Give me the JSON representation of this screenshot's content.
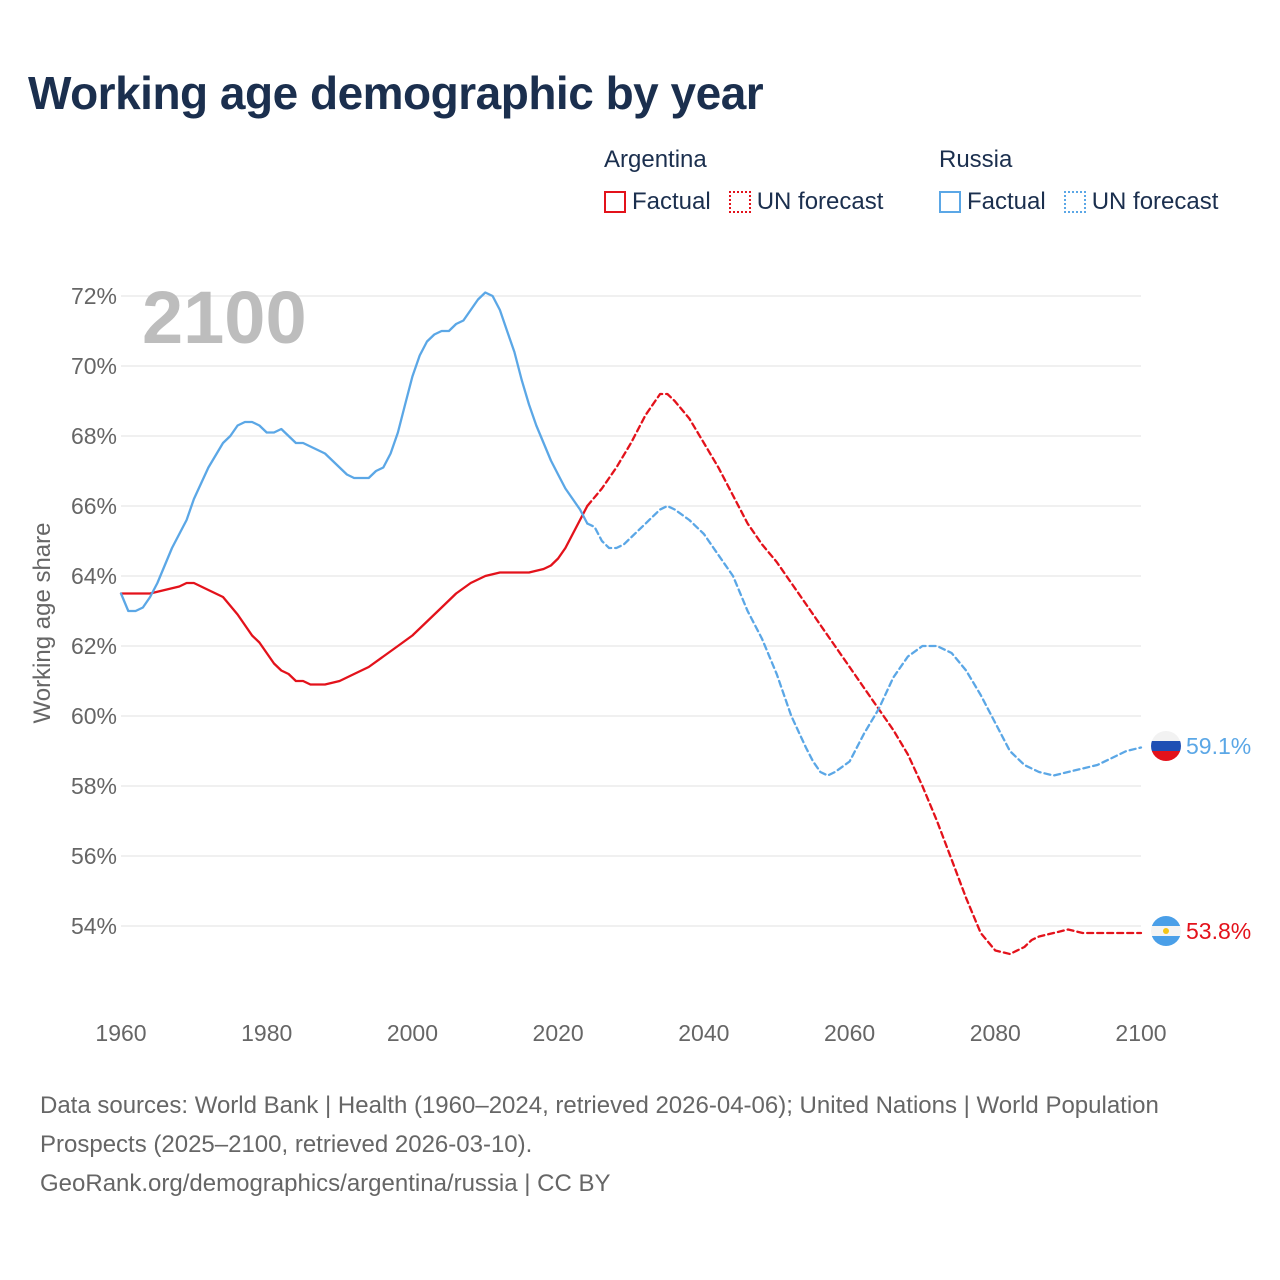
{
  "title": "Working age demographic by year",
  "year_watermark": "2100",
  "legend": {
    "groups": [
      {
        "name": "Argentina",
        "color": "#e3121b",
        "factual_label": "Factual",
        "forecast_label": "UN forecast"
      },
      {
        "name": "Russia",
        "color": "#5ba7e6",
        "factual_label": "Factual",
        "forecast_label": "UN forecast"
      }
    ]
  },
  "end_labels": {
    "argentina": "53.8%",
    "russia": "59.1%"
  },
  "footer": {
    "sources": "Data sources: World Bank | Health (1960–2024, retrieved 2026-04-06); United Nations | World Population Prospects (2025–2100, retrieved 2026-03-10).",
    "credit": "GeoRank.org/demographics/argentina/russia | CC BY"
  },
  "chart_data": {
    "type": "line",
    "title": "Working age demographic by year",
    "xlabel": "",
    "ylabel": "Working age share",
    "xlim": [
      1960,
      2100
    ],
    "ylim": [
      52,
      73
    ],
    "x_ticks": [
      1960,
      1980,
      2000,
      2020,
      2040,
      2060,
      2080,
      2100
    ],
    "x_tick_labels": [
      "1960",
      "1980",
      "2000",
      "2020",
      "2040",
      "2060",
      "2080",
      "2100"
    ],
    "y_ticks": [
      54,
      56,
      58,
      60,
      62,
      64,
      66,
      68,
      70,
      72
    ],
    "y_tick_labels": [
      "54%",
      "56%",
      "58%",
      "60%",
      "62%",
      "64%",
      "66%",
      "68%",
      "70%",
      "72%"
    ],
    "grid": true,
    "legend_position": "top-right",
    "series": [
      {
        "name": "Argentina Factual",
        "country": "Argentina",
        "style": "solid",
        "color": "#e3121b",
        "x": [
          1960,
          1962,
          1964,
          1966,
          1968,
          1969,
          1970,
          1972,
          1974,
          1976,
          1978,
          1979,
          1980,
          1981,
          1982,
          1983,
          1984,
          1985,
          1986,
          1988,
          1990,
          1992,
          1994,
          1996,
          1998,
          2000,
          2002,
          2004,
          2006,
          2008,
          2010,
          2012,
          2014,
          2016,
          2018,
          2019,
          2020,
          2021,
          2022,
          2023,
          2024
        ],
        "y": [
          63.5,
          63.5,
          63.5,
          63.6,
          63.7,
          63.8,
          63.8,
          63.6,
          63.4,
          62.9,
          62.3,
          62.1,
          61.8,
          61.5,
          61.3,
          61.2,
          61.0,
          61.0,
          60.9,
          60.9,
          61.0,
          61.2,
          61.4,
          61.7,
          62.0,
          62.3,
          62.7,
          63.1,
          63.5,
          63.8,
          64.0,
          64.1,
          64.1,
          64.1,
          64.2,
          64.3,
          64.5,
          64.8,
          65.2,
          65.6,
          66.0
        ]
      },
      {
        "name": "Argentina UN forecast",
        "country": "Argentina",
        "style": "dashed",
        "color": "#e3121b",
        "x": [
          2024,
          2026,
          2028,
          2030,
          2032,
          2034,
          2035,
          2036,
          2038,
          2040,
          2042,
          2044,
          2046,
          2048,
          2050,
          2052,
          2054,
          2056,
          2058,
          2060,
          2062,
          2064,
          2066,
          2068,
          2070,
          2072,
          2074,
          2076,
          2078,
          2080,
          2082,
          2084,
          2085,
          2086,
          2088,
          2090,
          2092,
          2094,
          2096,
          2098,
          2100
        ],
        "y": [
          66.0,
          66.5,
          67.1,
          67.8,
          68.6,
          69.2,
          69.2,
          69.0,
          68.5,
          67.8,
          67.1,
          66.3,
          65.5,
          64.9,
          64.4,
          63.8,
          63.2,
          62.6,
          62.0,
          61.4,
          60.8,
          60.2,
          59.6,
          58.9,
          58.0,
          57.0,
          55.9,
          54.8,
          53.8,
          53.3,
          53.2,
          53.4,
          53.6,
          53.7,
          53.8,
          53.9,
          53.8,
          53.8,
          53.8,
          53.8,
          53.8
        ]
      },
      {
        "name": "Russia Factual",
        "country": "Russia",
        "style": "solid",
        "color": "#5ba7e6",
        "x": [
          1960,
          1961,
          1962,
          1963,
          1964,
          1965,
          1966,
          1967,
          1968,
          1969,
          1970,
          1972,
          1974,
          1975,
          1976,
          1977,
          1978,
          1979,
          1980,
          1981,
          1982,
          1983,
          1984,
          1985,
          1986,
          1988,
          1990,
          1991,
          1992,
          1994,
          1995,
          1996,
          1997,
          1998,
          1999,
          2000,
          2001,
          2002,
          2003,
          2004,
          2005,
          2006,
          2007,
          2008,
          2009,
          2010,
          2011,
          2012,
          2013,
          2014,
          2015,
          2016,
          2017,
          2018,
          2019,
          2020,
          2021,
          2022,
          2023,
          2024
        ],
        "y": [
          63.5,
          63.0,
          63.0,
          63.1,
          63.4,
          63.8,
          64.3,
          64.8,
          65.2,
          65.6,
          66.2,
          67.1,
          67.8,
          68.0,
          68.3,
          68.4,
          68.4,
          68.3,
          68.1,
          68.1,
          68.2,
          68.0,
          67.8,
          67.8,
          67.7,
          67.5,
          67.1,
          66.9,
          66.8,
          66.8,
          67.0,
          67.1,
          67.5,
          68.1,
          68.9,
          69.7,
          70.3,
          70.7,
          70.9,
          71.0,
          71.0,
          71.2,
          71.3,
          71.6,
          71.9,
          72.1,
          72.0,
          71.6,
          71.0,
          70.4,
          69.6,
          68.9,
          68.3,
          67.8,
          67.3,
          66.9,
          66.5,
          66.2,
          65.9,
          65.5
        ]
      },
      {
        "name": "Russia UN forecast",
        "country": "Russia",
        "style": "dashed",
        "color": "#5ba7e6",
        "x": [
          2024,
          2025,
          2026,
          2027,
          2028,
          2029,
          2030,
          2032,
          2034,
          2035,
          2036,
          2038,
          2040,
          2042,
          2044,
          2046,
          2048,
          2050,
          2052,
          2054,
          2055,
          2056,
          2057,
          2058,
          2060,
          2062,
          2064,
          2066,
          2068,
          2070,
          2072,
          2074,
          2076,
          2078,
          2080,
          2082,
          2084,
          2086,
          2088,
          2090,
          2092,
          2094,
          2096,
          2098,
          2100
        ],
        "y": [
          65.5,
          65.4,
          65.0,
          64.8,
          64.8,
          64.9,
          65.1,
          65.5,
          65.9,
          66.0,
          65.9,
          65.6,
          65.2,
          64.6,
          64.0,
          63.0,
          62.2,
          61.2,
          60.0,
          59.1,
          58.7,
          58.4,
          58.3,
          58.4,
          58.7,
          59.5,
          60.2,
          61.1,
          61.7,
          62.0,
          62.0,
          61.8,
          61.3,
          60.6,
          59.8,
          59.0,
          58.6,
          58.4,
          58.3,
          58.4,
          58.5,
          58.6,
          58.8,
          59.0,
          59.1
        ]
      }
    ]
  }
}
